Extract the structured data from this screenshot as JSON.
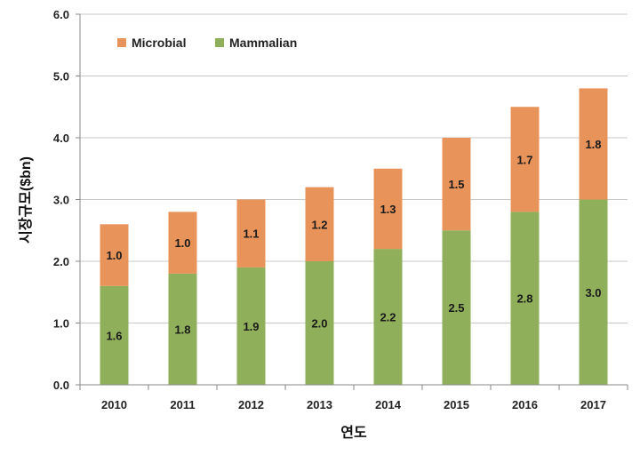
{
  "chart_data": {
    "type": "bar",
    "stacked": true,
    "categories": [
      "2010",
      "2011",
      "2012",
      "2013",
      "2014",
      "2015",
      "2016",
      "2017"
    ],
    "series": [
      {
        "name": "Mammalian",
        "values": [
          1.6,
          1.8,
          1.9,
          2.0,
          2.2,
          2.5,
          2.8,
          3.0
        ],
        "color": "#8faf5a"
      },
      {
        "name": "Microbial",
        "values": [
          1.0,
          1.0,
          1.1,
          1.2,
          1.3,
          1.5,
          1.7,
          1.8
        ],
        "color": "#e8935a"
      }
    ],
    "xlabel": "연도",
    "ylabel": "시장규모($bn)",
    "ylim": [
      0,
      6.0
    ],
    "yticks": [
      "0.0",
      "1.0",
      "2.0",
      "3.0",
      "4.0",
      "5.0",
      "6.0"
    ],
    "grid": true,
    "legend": {
      "position": "top-left",
      "order": [
        "Microbial",
        "Mammalian"
      ]
    },
    "data_labels": true
  }
}
